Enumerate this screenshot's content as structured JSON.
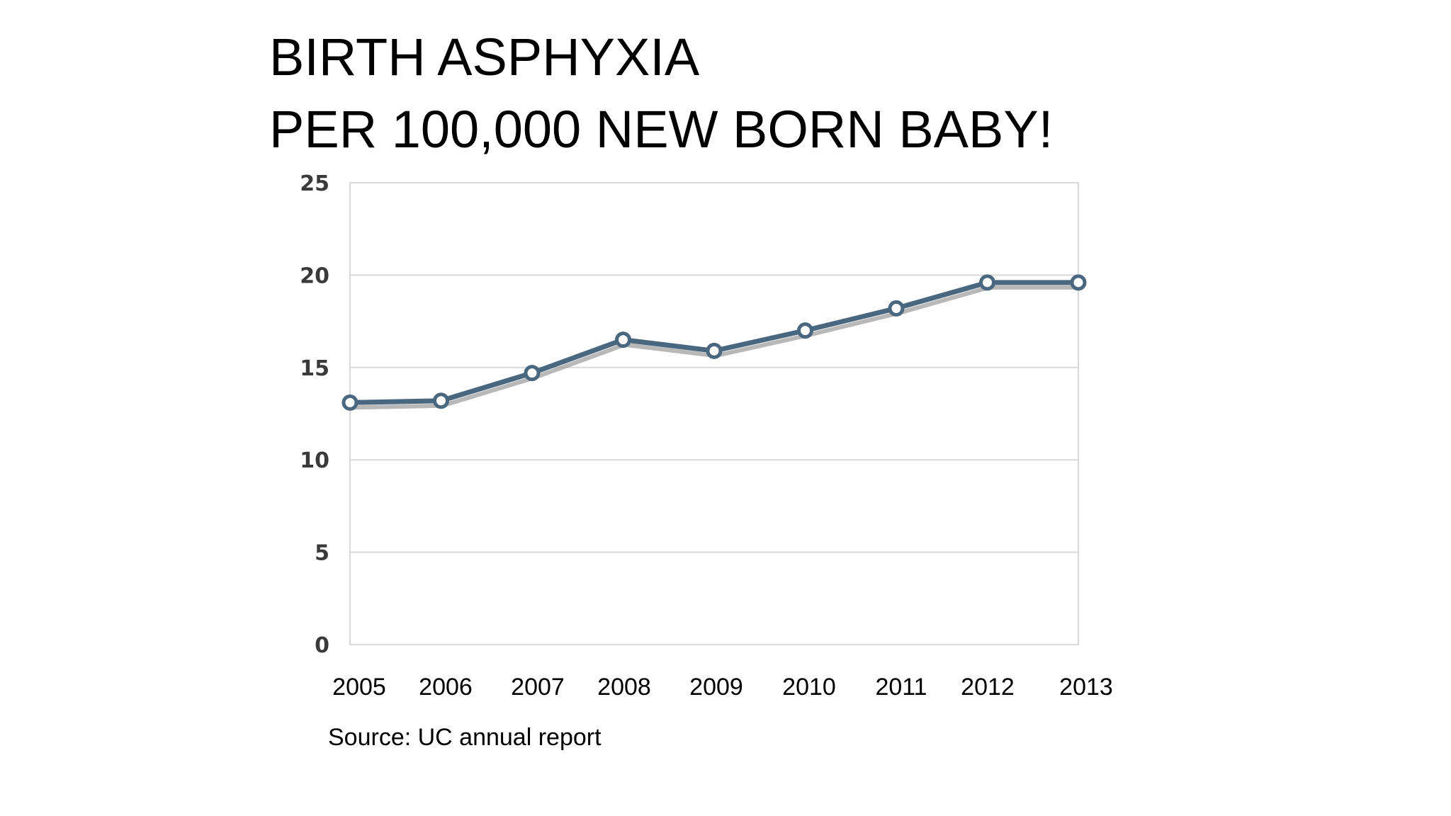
{
  "slide": {
    "title_line1": "BIRTH ASPHYXIA",
    "title_line2": "PER 100,000 NEW BORN BABY!",
    "source": "Source: UC annual report"
  },
  "colors": {
    "line": "#4a6780",
    "shadow": "#9a9a9a",
    "grid": "#d9d9d9",
    "axis_label": "#3a3a3a",
    "text": "#000000"
  },
  "chart_data": {
    "type": "line",
    "title": "",
    "xlabel": "",
    "ylabel": "",
    "categories": [
      "2005",
      "2006",
      "2007",
      "2008",
      "2009",
      "2010",
      "2011",
      "2012",
      "2013"
    ],
    "series": [
      {
        "values": [
          13.1,
          13.2,
          14.7,
          16.5,
          15.9,
          17.0,
          18.2,
          19.6,
          19.6
        ]
      }
    ],
    "ylim": [
      0,
      25
    ],
    "yticks": [
      0,
      5,
      10,
      15,
      20,
      25
    ],
    "grid": true,
    "legend": "none"
  }
}
